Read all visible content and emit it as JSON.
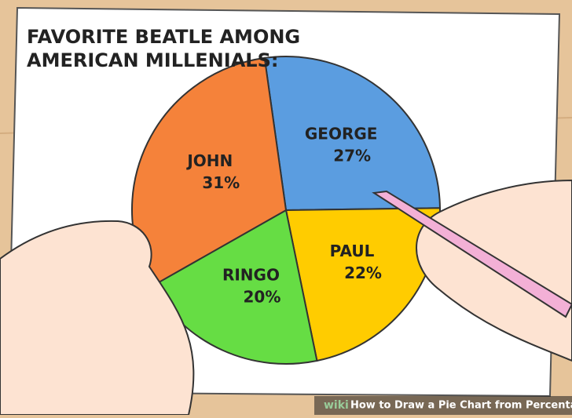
{
  "chart_data": {
    "type": "pie",
    "title": [
      "FAVORITE BEATLE AMONG",
      "AMERICAN MILLENIALS:"
    ],
    "categories": [
      "GEORGE",
      "PAUL",
      "RINGO",
      "JOHN"
    ],
    "values": [
      27,
      22,
      20,
      31
    ],
    "value_labels": [
      "27%",
      "22%",
      "20%",
      "31%"
    ],
    "colors": [
      "#5b9de0",
      "#ffcc00",
      "#66dd44",
      "#f5823a"
    ]
  },
  "watermark": {
    "brand": "wiki",
    "caption": "How to Draw a Pie Chart from Percentages"
  }
}
